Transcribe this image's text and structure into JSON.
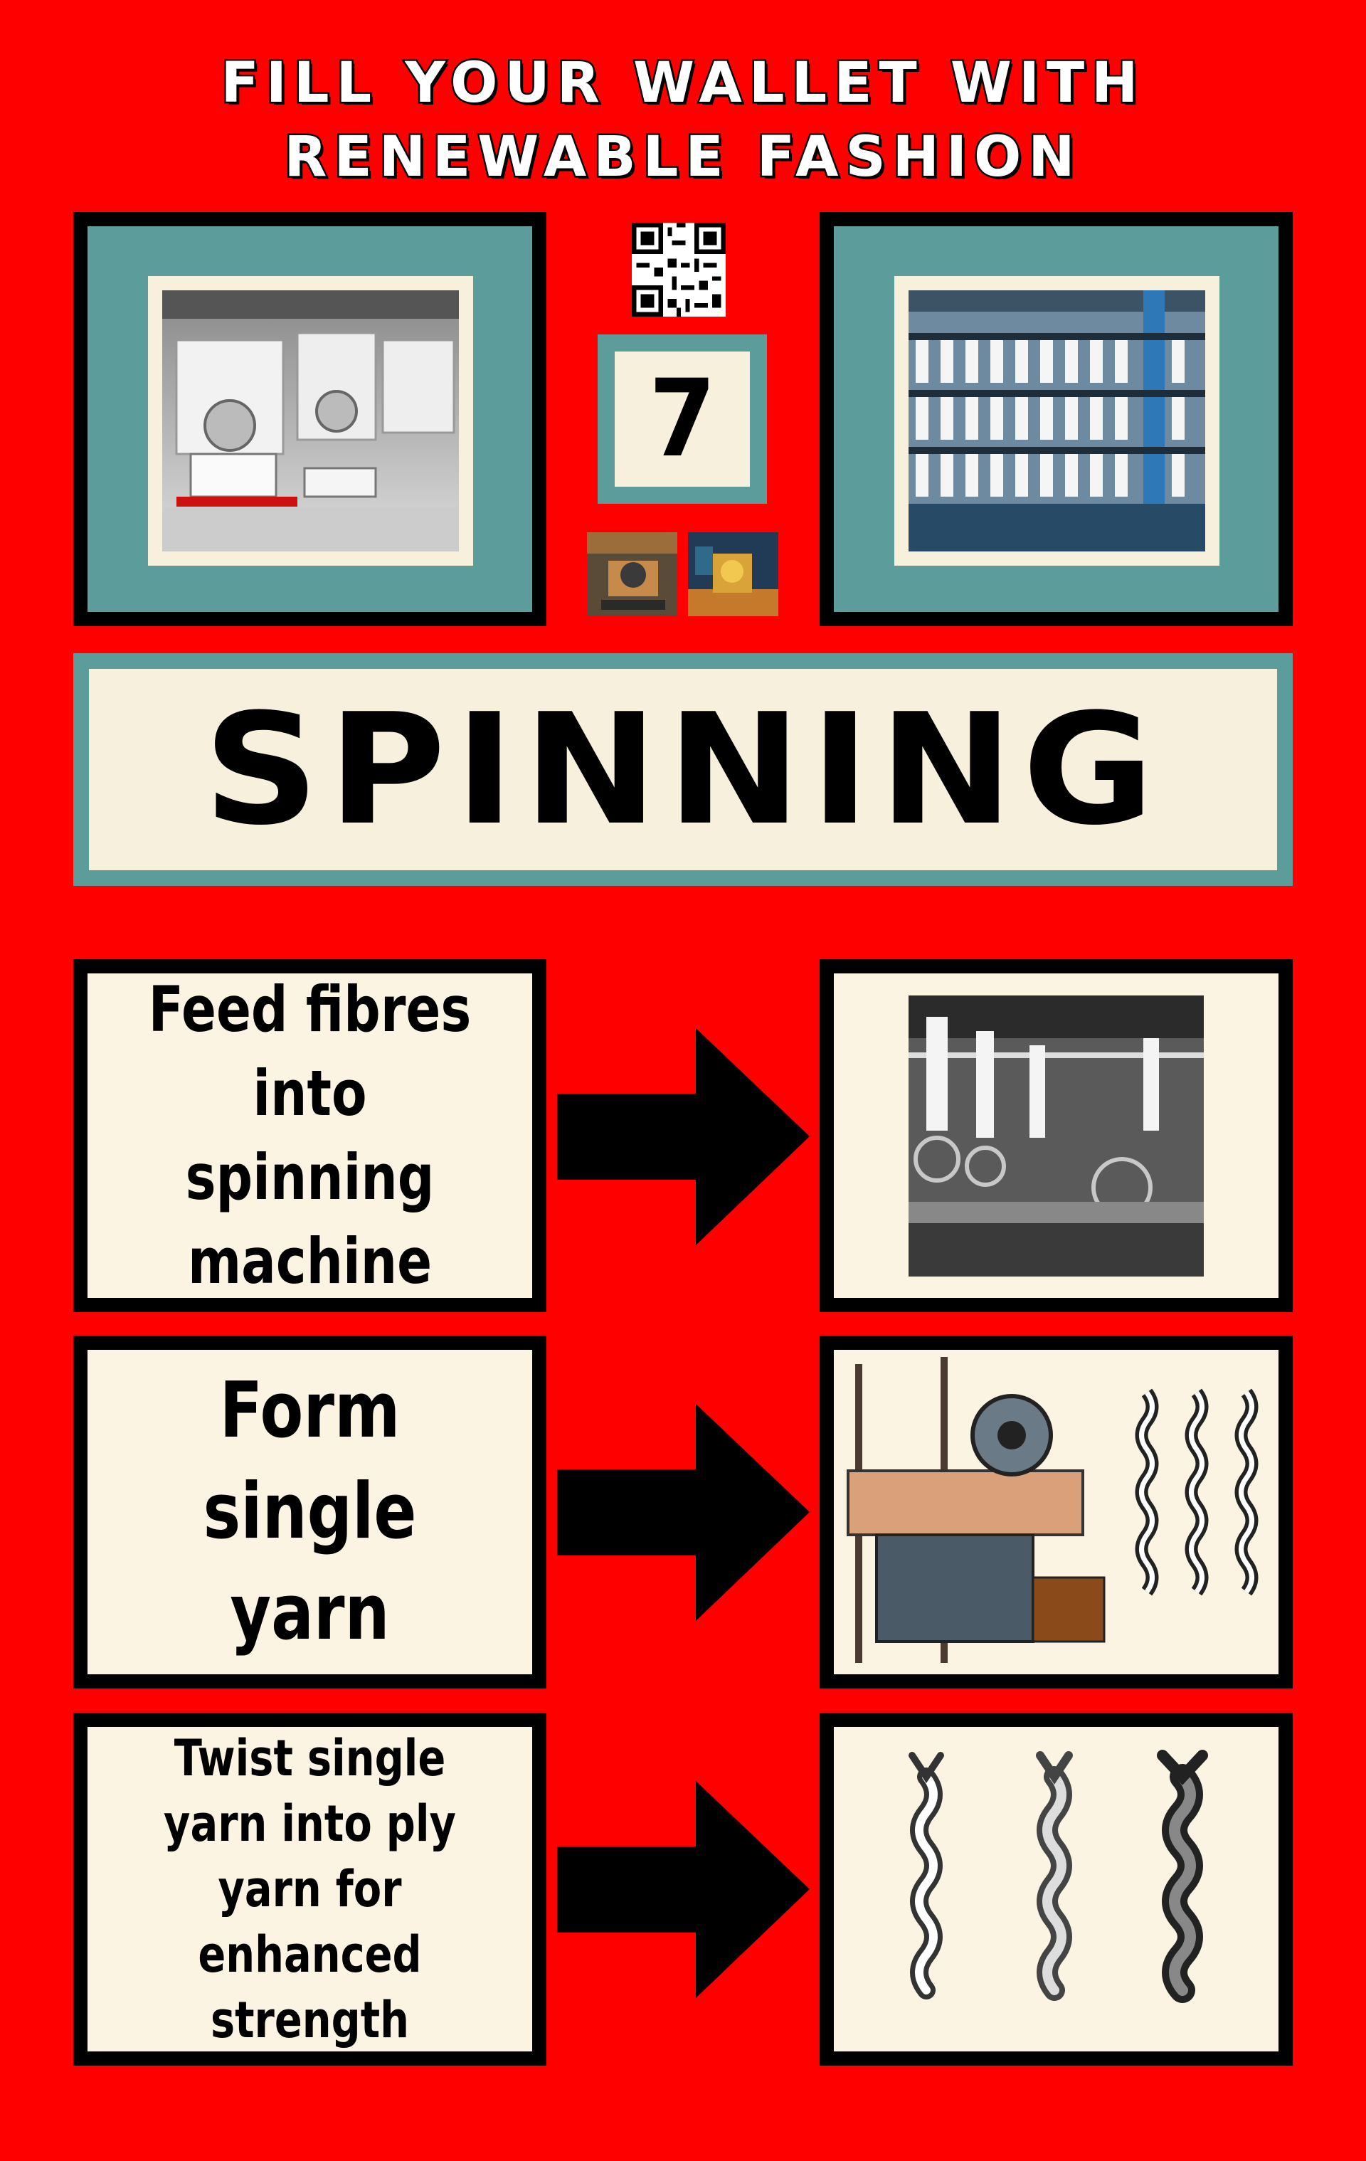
{
  "header": {
    "line1": "FILL YOUR WALLET WITH",
    "line2": "RENEWABLE FASHION"
  },
  "badge": {
    "number": "7"
  },
  "section_title": "SPINNING",
  "steps": [
    {
      "text": "Feed fibres into spinning machine"
    },
    {
      "text": "Form single yarn"
    },
    {
      "text": "Twist single yarn into ply yarn for enhanced strength"
    }
  ],
  "colors": {
    "background": "#fe0000",
    "teal": "#5c9c9b",
    "cream": "#f7f0dc",
    "black": "#000000"
  }
}
